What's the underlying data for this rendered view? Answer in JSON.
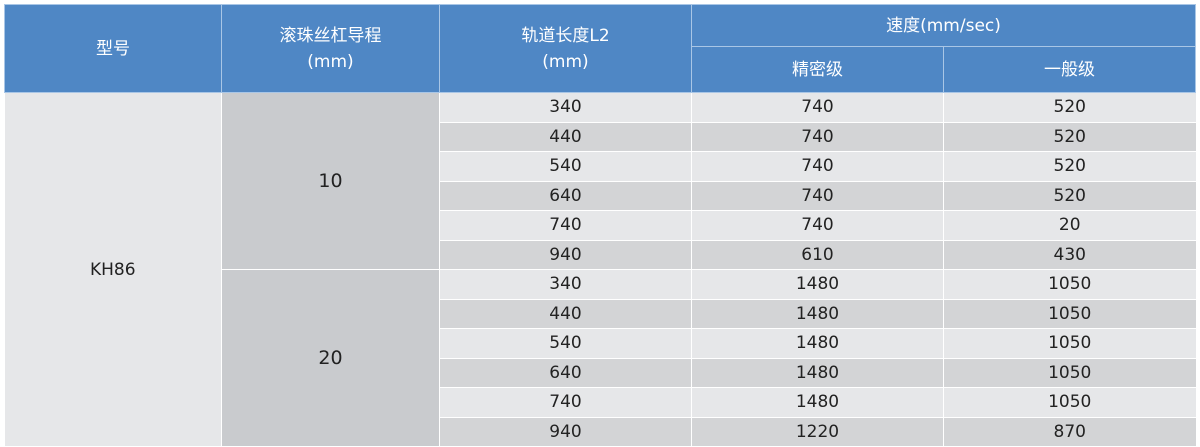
{
  "header": {
    "model": "型号",
    "lead": "滚珠丝杠导程",
    "lead_unit": "(mm)",
    "length": "轨道长度L2",
    "length_unit": "(mm)",
    "speed": "速度(mm/sec)",
    "precision": "精密级",
    "general": "一般级"
  },
  "model": "KH86",
  "groups": [
    {
      "lead": "10",
      "rows": [
        [
          "340",
          "740",
          "520"
        ],
        [
          "440",
          "740",
          "520"
        ],
        [
          "540",
          "740",
          "520"
        ],
        [
          "640",
          "740",
          "520"
        ],
        [
          "740",
          "740",
          "20"
        ],
        [
          "940",
          "610",
          "430"
        ]
      ]
    },
    {
      "lead": "20",
      "rows": [
        [
          "340",
          "1480",
          "1050"
        ],
        [
          "440",
          "1480",
          "1050"
        ],
        [
          "540",
          "1480",
          "1050"
        ],
        [
          "640",
          "1480",
          "1050"
        ],
        [
          "740",
          "1480",
          "1050"
        ],
        [
          "940",
          "1220",
          "870"
        ]
      ]
    }
  ],
  "colors": {
    "header": "#4f87c5",
    "row_light": "#e6e7e9",
    "row_dark": "#d3d4d6",
    "lead_cell": "#c9cbce"
  }
}
